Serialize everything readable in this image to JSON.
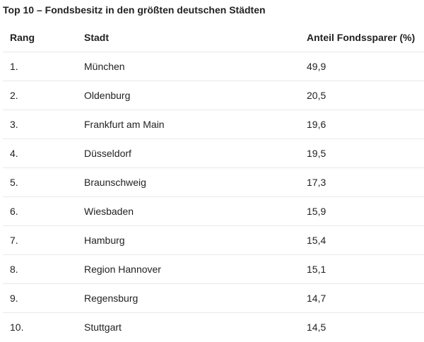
{
  "title": "Top 10 – Fondsbesitz in den größten deutschen Städten",
  "table": {
    "headers": [
      "Rang",
      "Stadt",
      "Anteil Fondssparer (%)"
    ],
    "rows": [
      [
        "1.",
        "München",
        "49,9"
      ],
      [
        "2.",
        "Oldenburg",
        "20,5"
      ],
      [
        "3.",
        "Frankfurt am Main",
        "19,6"
      ],
      [
        "4.",
        "Düsseldorf",
        "19,5"
      ],
      [
        "5.",
        "Braunschweig",
        "17,3"
      ],
      [
        "6.",
        "Wiesbaden",
        "15,9"
      ],
      [
        "7.",
        "Hamburg",
        "15,4"
      ],
      [
        "8.",
        "Region Hannover",
        "15,1"
      ],
      [
        "9.",
        "Regensburg",
        "14,7"
      ],
      [
        "10.",
        "Stuttgart",
        "14,5"
      ]
    ]
  }
}
